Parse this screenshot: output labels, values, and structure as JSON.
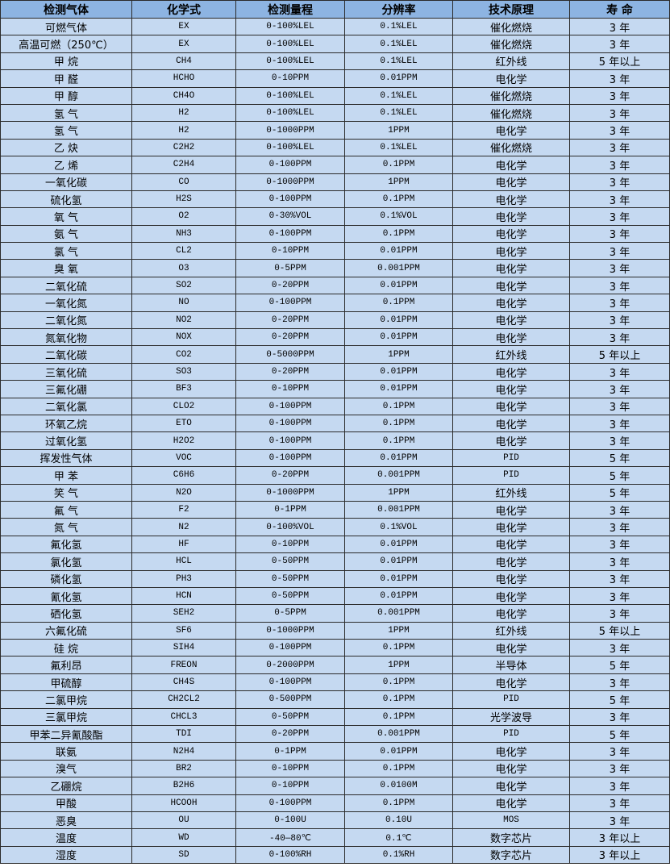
{
  "colors": {
    "header_bg": "#8db4e2",
    "row_bg": "#c5d9f1",
    "border": "#2b2b2b"
  },
  "headers": [
    "检测气体",
    "化学式",
    "检测量程",
    "分辨率",
    "技术原理",
    "寿 命"
  ],
  "rows": [
    [
      "可燃气体",
      "EX",
      "0-100%LEL",
      "0.1%LEL",
      "催化燃烧",
      "3 年"
    ],
    [
      "高温可燃（250℃）",
      "EX",
      "0-100%LEL",
      "0.1%LEL",
      "催化燃烧",
      "3 年"
    ],
    [
      "甲 烷",
      "CH4",
      "0-100%LEL",
      "0.1%LEL",
      "红外线",
      "5 年以上"
    ],
    [
      "甲 醛",
      "HCHO",
      "0-10PPM",
      "0.01PPM",
      "电化学",
      "3 年"
    ],
    [
      "甲 醇",
      "CH4O",
      "0-100%LEL",
      "0.1%LEL",
      "催化燃烧",
      "3 年"
    ],
    [
      "氢 气",
      "H2",
      "0-100%LEL",
      "0.1%LEL",
      "催化燃烧",
      "3 年"
    ],
    [
      "氢 气",
      "H2",
      "0-1000PPM",
      "1PPM",
      "电化学",
      "3 年"
    ],
    [
      "乙 炔",
      "C2H2",
      "0-100%LEL",
      "0.1%LEL",
      "催化燃烧",
      "3 年"
    ],
    [
      "乙 烯",
      "C2H4",
      "0-100PPM",
      "0.1PPM",
      "电化学",
      "3 年"
    ],
    [
      "一氧化碳",
      "CO",
      "0-1000PPM",
      "1PPM",
      "电化学",
      "3 年"
    ],
    [
      "硫化氢",
      "H2S",
      "0-100PPM",
      "0.1PPM",
      "电化学",
      "3 年"
    ],
    [
      "氧 气",
      "O2",
      "0-30%VOL",
      "0.1%VOL",
      "电化学",
      "3 年"
    ],
    [
      "氨 气",
      "NH3",
      "0-100PPM",
      "0.1PPM",
      "电化学",
      "3 年"
    ],
    [
      "氯 气",
      "CL2",
      "0-10PPM",
      "0.01PPM",
      "电化学",
      "3 年"
    ],
    [
      "臭 氧",
      "O3",
      "0-5PPM",
      "0.001PPM",
      "电化学",
      "3 年"
    ],
    [
      "二氧化硫",
      "SO2",
      "0-20PPM",
      "0.01PPM",
      "电化学",
      "3 年"
    ],
    [
      "一氧化氮",
      "NO",
      "0-100PPM",
      "0.1PPM",
      "电化学",
      "3 年"
    ],
    [
      "二氧化氮",
      "NO2",
      "0-20PPM",
      "0.01PPM",
      "电化学",
      "3 年"
    ],
    [
      "氮氧化物",
      "NOX",
      "0-20PPM",
      "0.01PPM",
      "电化学",
      "3 年"
    ],
    [
      "二氧化碳",
      "CO2",
      "0-5000PPM",
      "1PPM",
      "红外线",
      "5 年以上"
    ],
    [
      "三氧化硫",
      "SO3",
      "0-20PPM",
      "0.01PPM",
      "电化学",
      "3 年"
    ],
    [
      "三氟化硼",
      "BF3",
      "0-10PPM",
      "0.01PPM",
      "电化学",
      "3 年"
    ],
    [
      "二氧化氯",
      "CLO2",
      "0-100PPM",
      "0.1PPM",
      "电化学",
      "3 年"
    ],
    [
      "环氧乙烷",
      "ETO",
      "0-100PPM",
      "0.1PPM",
      "电化学",
      "3 年"
    ],
    [
      "过氧化氢",
      "H2O2",
      "0-100PPM",
      "0.1PPM",
      "电化学",
      "3 年"
    ],
    [
      "挥发性气体",
      "VOC",
      "0-100PPM",
      "0.01PPM",
      "PID",
      "5 年"
    ],
    [
      "甲 苯",
      "C6H6",
      "0-20PPM",
      "0.001PPM",
      "PID",
      "5 年"
    ],
    [
      "笑 气",
      "N2O",
      "0-1000PPM",
      "1PPM",
      "红外线",
      "5 年"
    ],
    [
      "氟 气",
      "F2",
      "0-1PPM",
      "0.001PPM",
      "电化学",
      "3 年"
    ],
    [
      "氮 气",
      "N2",
      "0-100%VOL",
      "0.1%VOL",
      "电化学",
      "3 年"
    ],
    [
      "氟化氢",
      "HF",
      "0-10PPM",
      "0.01PPM",
      "电化学",
      "3 年"
    ],
    [
      "氯化氢",
      "HCL",
      "0-50PPM",
      "0.01PPM",
      "电化学",
      "3 年"
    ],
    [
      "磷化氢",
      "PH3",
      "0-50PPM",
      "0.01PPM",
      "电化学",
      "3 年"
    ],
    [
      "氰化氢",
      "HCN",
      "0-50PPM",
      "0.01PPM",
      "电化学",
      "3 年"
    ],
    [
      "硒化氢",
      "SEH2",
      "0-5PPM",
      "0.001PPM",
      "电化学",
      "3 年"
    ],
    [
      "六氟化硫",
      "SF6",
      "0-1000PPM",
      "1PPM",
      "红外线",
      "5 年以上"
    ],
    [
      "硅 烷",
      "SIH4",
      "0-100PPM",
      "0.1PPM",
      "电化学",
      "3 年"
    ],
    [
      "氟利昂",
      "FREON",
      "0-2000PPM",
      "1PPM",
      "半导体",
      "5 年"
    ],
    [
      "甲硫醇",
      "CH4S",
      "0-100PPM",
      "0.1PPM",
      "电化学",
      "3 年"
    ],
    [
      "二氯甲烷",
      "CH2CL2",
      "0-500PPM",
      "0.1PPM",
      "PID",
      "5 年"
    ],
    [
      "三氯甲烷",
      "CHCL3",
      "0-50PPM",
      "0.1PPM",
      "光学波导",
      "3 年"
    ],
    [
      "甲苯二异氰酸酯",
      "TDI",
      "0-20PPM",
      "0.001PPM",
      "PID",
      "5 年"
    ],
    [
      "联氨",
      "N2H4",
      "0-1PPM",
      "0.01PPM",
      "电化学",
      "3 年"
    ],
    [
      "溴气",
      "BR2",
      "0-10PPM",
      "0.1PPM",
      "电化学",
      "3 年"
    ],
    [
      "乙硼烷",
      "B2H6",
      "0-10PPM",
      "0.0100M",
      "电化学",
      "3 年"
    ],
    [
      "甲酸",
      "HCOOH",
      "0-100PPM",
      "0.1PPM",
      "电化学",
      "3 年"
    ],
    [
      "恶臭",
      "OU",
      "0-100U",
      "0.10U",
      "MOS",
      "3 年"
    ],
    [
      "温度",
      "WD",
      "-40—80℃",
      "0.1℃",
      "数字芯片",
      "3 年以上"
    ],
    [
      "湿度",
      "SD",
      "0-100%RH",
      "0.1%RH",
      "数字芯片",
      "3 年以上"
    ]
  ]
}
